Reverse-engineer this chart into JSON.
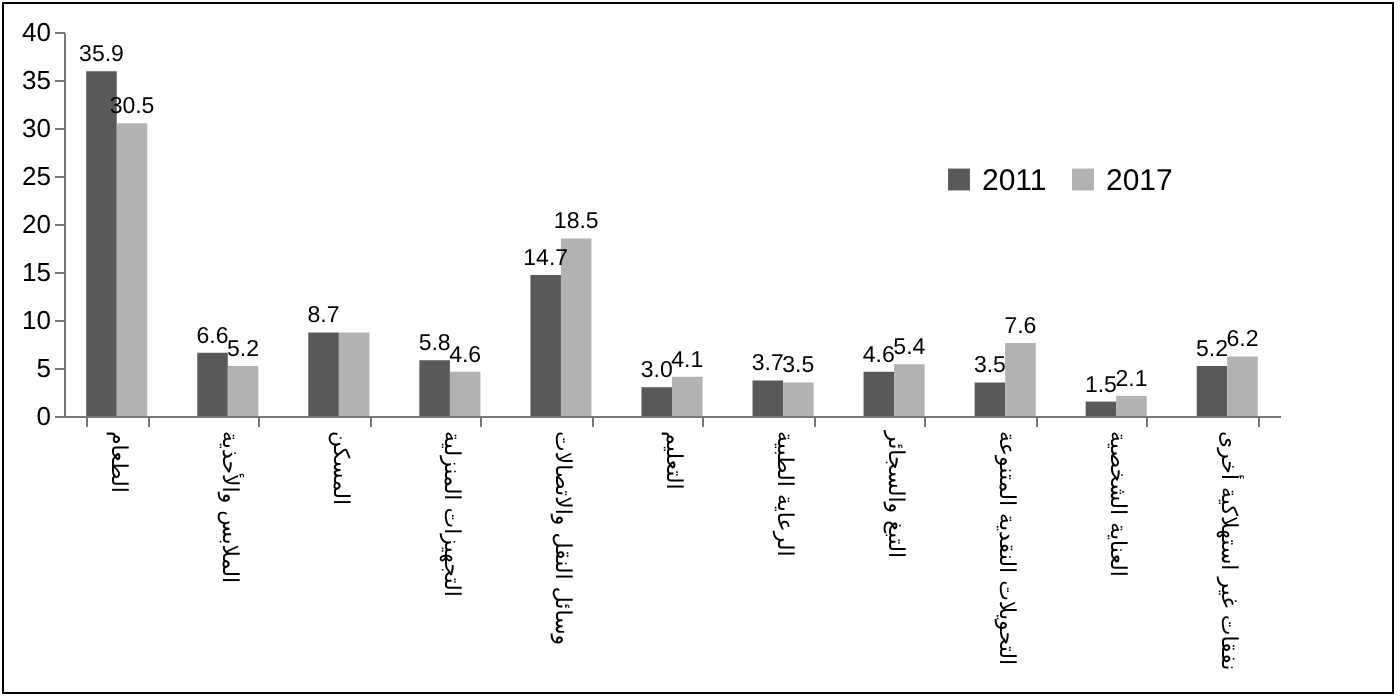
{
  "chart_data": {
    "type": "bar",
    "categories": [
      "الطعام",
      "الملابس والأحذية",
      "المسكن",
      "التجهيزات المنزلية",
      "وسائل النقل والاتصالات",
      "التعليم",
      "الرعاية الطبية",
      "التبغ والسجائر",
      "التحويلات النقدية المتنوعة",
      "العناية الشخصية",
      "نفقات غير استهلاكية أخرى"
    ],
    "series": [
      {
        "name": "2011",
        "color": "#595959",
        "values": [
          35.9,
          6.6,
          8.7,
          5.8,
          14.7,
          3.0,
          3.7,
          4.6,
          3.5,
          1.5,
          5.2
        ],
        "value_labels": [
          "35.9",
          "6.6",
          "8.7",
          "5.8",
          "14.7",
          "3.0",
          "3.7",
          "4.6",
          "3.5",
          "1.5",
          "5.2"
        ]
      },
      {
        "name": "2017",
        "color": "#b2b2b2",
        "values": [
          30.5,
          5.2,
          8.7,
          4.6,
          18.5,
          4.1,
          3.5,
          5.4,
          7.6,
          2.1,
          6.2
        ],
        "value_labels": [
          "30.5",
          "5.2",
          null,
          "4.6",
          "18.5",
          "4.1",
          "3.5",
          "5.4",
          "7.6",
          "2.1",
          "6.2"
        ]
      }
    ],
    "ylim": [
      0,
      40
    ],
    "yticks": [
      0,
      5,
      10,
      15,
      20,
      25,
      30,
      35,
      40
    ],
    "grid": false,
    "legend": "top right"
  }
}
